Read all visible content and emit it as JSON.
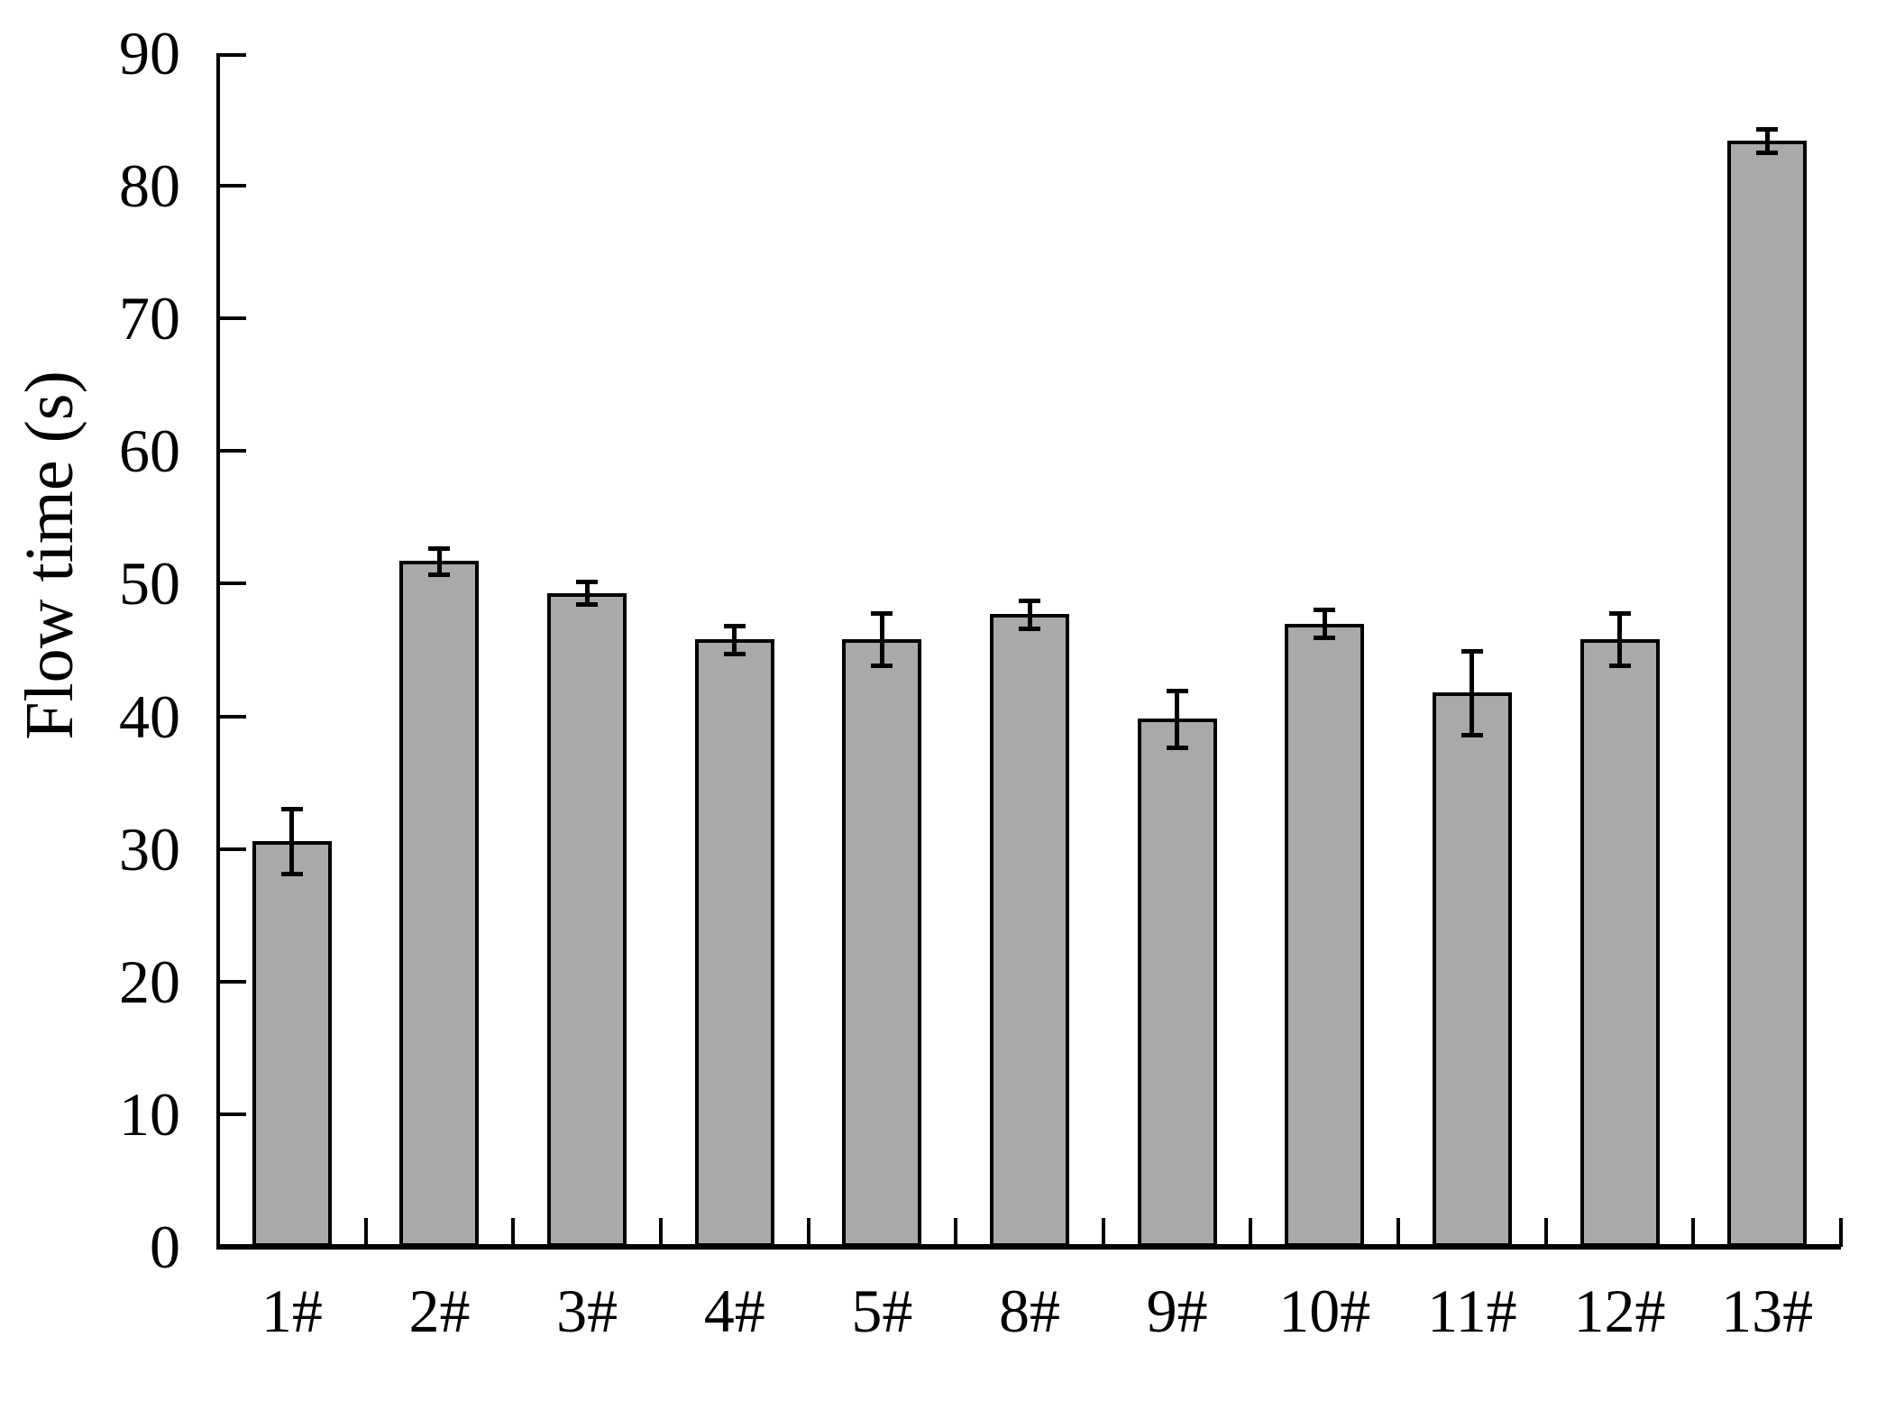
{
  "chart_data": {
    "type": "bar",
    "title": "",
    "xlabel": "",
    "ylabel": "Flow time (s)",
    "categories": [
      "1#",
      "2#",
      "3#",
      "4#",
      "5#",
      "8#",
      "9#",
      "10#",
      "11#",
      "12#",
      "13#"
    ],
    "values": [
      30.6,
      51.7,
      49.3,
      45.8,
      45.8,
      47.7,
      39.8,
      47.0,
      41.8,
      45.8,
      83.4
    ],
    "errors": [
      2.5,
      1.0,
      0.9,
      1.1,
      2.0,
      1.1,
      2.2,
      1.1,
      3.2,
      2.0,
      0.9
    ],
    "ylim": [
      0,
      90
    ],
    "yticks": [
      0,
      10,
      20,
      30,
      40,
      50,
      60,
      70,
      80,
      90
    ],
    "grid": false,
    "legend_position": "none",
    "bar_fill_color": "#a9a9a9",
    "bar_border_color": "#000000",
    "axis_color": "#000000",
    "error_bar_color": "#000000"
  }
}
